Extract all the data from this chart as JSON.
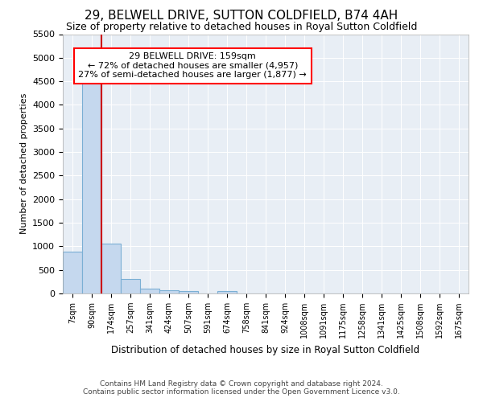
{
  "title": "29, BELWELL DRIVE, SUTTON COLDFIELD, B74 4AH",
  "subtitle": "Size of property relative to detached houses in Royal Sutton Coldfield",
  "xlabel": "Distribution of detached houses by size in Royal Sutton Coldfield",
  "ylabel": "Number of detached properties",
  "footer_line1": "Contains HM Land Registry data © Crown copyright and database right 2024.",
  "footer_line2": "Contains public sector information licensed under the Open Government Licence v3.0.",
  "bar_labels": [
    "7sqm",
    "90sqm",
    "174sqm",
    "257sqm",
    "341sqm",
    "424sqm",
    "507sqm",
    "591sqm",
    "674sqm",
    "758sqm",
    "841sqm",
    "924sqm",
    "1008sqm",
    "1091sqm",
    "1175sqm",
    "1258sqm",
    "1341sqm",
    "1425sqm",
    "1508sqm",
    "1592sqm",
    "1675sqm"
  ],
  "bar_values": [
    880,
    4560,
    1060,
    300,
    95,
    75,
    50,
    0,
    50,
    0,
    0,
    0,
    0,
    0,
    0,
    0,
    0,
    0,
    0,
    0,
    0
  ],
  "bar_color": "#c5d8ee",
  "bar_edge_color": "#7bafd4",
  "vline_x": 1.5,
  "vline_color": "#cc0000",
  "annotation_title": "29 BELWELL DRIVE: 159sqm",
  "annotation_line1": "← 72% of detached houses are smaller (4,957)",
  "annotation_line2": "27% of semi-detached houses are larger (1,877) →",
  "ylim": [
    0,
    5500
  ],
  "yticks": [
    0,
    500,
    1000,
    1500,
    2000,
    2500,
    3000,
    3500,
    4000,
    4500,
    5000,
    5500
  ],
  "bg_color": "#ffffff",
  "plot_bg_color": "#e8eef5",
  "grid_color": "#ffffff",
  "title_fontsize": 11,
  "subtitle_fontsize": 9
}
